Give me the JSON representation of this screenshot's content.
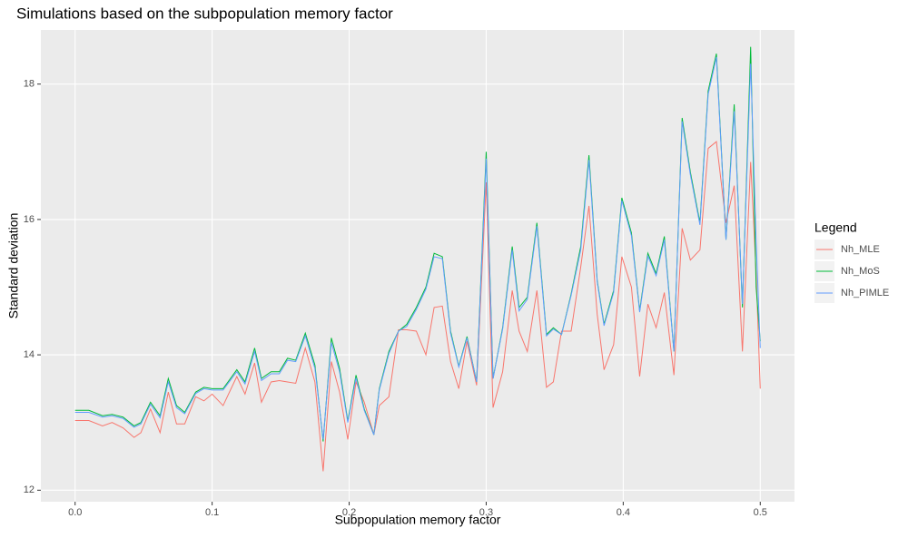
{
  "chart_data": {
    "type": "line",
    "title": "Simulations based on the subpopulation memory factor",
    "x_label": "Subpopulation memory factor",
    "y_label": "Standard deviation",
    "legend_title": "Legend",
    "legend_position": "right",
    "grid": true,
    "xlim": [
      -0.025,
      0.525
    ],
    "ylim": [
      11.83,
      18.8
    ],
    "xticks": [
      {
        "value": 0,
        "label": "0.0"
      },
      0.1,
      0.2,
      0.3,
      0.4,
      0.5
    ],
    "yticks": [
      12,
      14,
      16,
      18
    ],
    "x": [
      0,
      0.01,
      0.02,
      0.027,
      0.035,
      0.043,
      0.048,
      0.055,
      0.062,
      0.068,
      0.074,
      0.08,
      0.088,
      0.094,
      0.1,
      0.108,
      0.118,
      0.124,
      0.131,
      0.136,
      0.143,
      0.149,
      0.155,
      0.161,
      0.168,
      0.175,
      0.181,
      0.187,
      0.193,
      0.199,
      0.205,
      0.211,
      0.218,
      0.222,
      0.229,
      0.236,
      0.242,
      0.249,
      0.256,
      0.262,
      0.268,
      0.274,
      0.28,
      0.286,
      0.293,
      0.3,
      0.305,
      0.312,
      0.319,
      0.324,
      0.33,
      0.337,
      0.344,
      0.349,
      0.355,
      0.362,
      0.369,
      0.375,
      0.381,
      0.386,
      0.393,
      0.399,
      0.406,
      0.412,
      0.418,
      0.424,
      0.43,
      0.437,
      0.443,
      0.449,
      0.456,
      0.462,
      0.468,
      0.475,
      0.481,
      0.487,
      0.493,
      0.497,
      0.5
    ],
    "series": [
      {
        "name": "Nh_MLE",
        "color": "#f8766d",
        "values": [
          13.03,
          13.03,
          12.95,
          13.0,
          12.92,
          12.78,
          12.85,
          13.2,
          12.85,
          13.45,
          12.98,
          12.98,
          13.38,
          13.32,
          13.42,
          13.25,
          13.68,
          13.42,
          13.88,
          13.3,
          13.6,
          13.62,
          13.6,
          13.58,
          14.1,
          13.6,
          12.28,
          13.9,
          13.45,
          12.75,
          13.6,
          13.3,
          12.82,
          13.25,
          13.38,
          14.37,
          14.37,
          14.35,
          14.0,
          14.7,
          14.72,
          13.9,
          13.5,
          14.2,
          13.55,
          16.55,
          13.22,
          13.75,
          14.95,
          14.35,
          14.05,
          14.95,
          13.52,
          13.6,
          14.35,
          14.35,
          15.3,
          16.2,
          14.6,
          13.78,
          14.15,
          15.45,
          15.0,
          13.68,
          14.75,
          14.4,
          14.92,
          13.7,
          15.87,
          15.4,
          15.55,
          17.05,
          17.15,
          15.95,
          16.5,
          14.05,
          16.85,
          15.2,
          13.5
        ]
      },
      {
        "name": "Nh_MoS",
        "color": "#00ba38",
        "values": [
          13.18,
          13.18,
          13.1,
          13.12,
          13.08,
          12.95,
          13.0,
          13.3,
          13.1,
          13.65,
          13.25,
          13.15,
          13.45,
          13.52,
          13.5,
          13.5,
          13.78,
          13.6,
          14.1,
          13.65,
          13.75,
          13.75,
          13.95,
          13.92,
          14.32,
          13.85,
          12.72,
          14.25,
          13.8,
          13.02,
          13.7,
          13.2,
          12.82,
          13.5,
          14.05,
          14.35,
          14.45,
          14.7,
          15.0,
          15.5,
          15.45,
          14.35,
          13.83,
          14.27,
          13.6,
          17.0,
          13.65,
          14.4,
          15.6,
          14.7,
          14.85,
          15.95,
          14.3,
          14.4,
          14.3,
          14.9,
          15.6,
          16.95,
          15.1,
          14.45,
          14.95,
          16.32,
          15.8,
          14.65,
          15.5,
          15.2,
          15.75,
          14.05,
          17.5,
          16.7,
          15.95,
          17.9,
          18.45,
          15.7,
          17.7,
          14.7,
          18.55,
          15.0,
          14.2
        ]
      },
      {
        "name": "Nh_PIMLE",
        "color": "#619cff",
        "values": [
          13.15,
          13.15,
          13.08,
          13.1,
          13.06,
          12.93,
          12.98,
          13.27,
          13.07,
          13.6,
          13.22,
          13.13,
          13.43,
          13.5,
          13.48,
          13.48,
          13.75,
          13.57,
          14.05,
          13.62,
          13.72,
          13.72,
          13.92,
          13.9,
          14.28,
          13.8,
          12.75,
          14.18,
          13.75,
          13.0,
          13.66,
          13.18,
          12.82,
          13.48,
          14.02,
          14.35,
          14.42,
          14.67,
          14.97,
          15.45,
          15.42,
          14.32,
          13.82,
          14.25,
          13.6,
          16.9,
          13.65,
          14.38,
          15.55,
          14.65,
          14.82,
          15.9,
          14.28,
          14.38,
          14.3,
          14.88,
          15.55,
          16.88,
          15.08,
          14.43,
          14.92,
          16.28,
          15.76,
          14.63,
          15.46,
          15.17,
          15.7,
          14.05,
          17.45,
          16.66,
          15.92,
          17.85,
          18.4,
          15.7,
          17.6,
          14.75,
          18.3,
          15.7,
          14.1
        ]
      }
    ]
  }
}
